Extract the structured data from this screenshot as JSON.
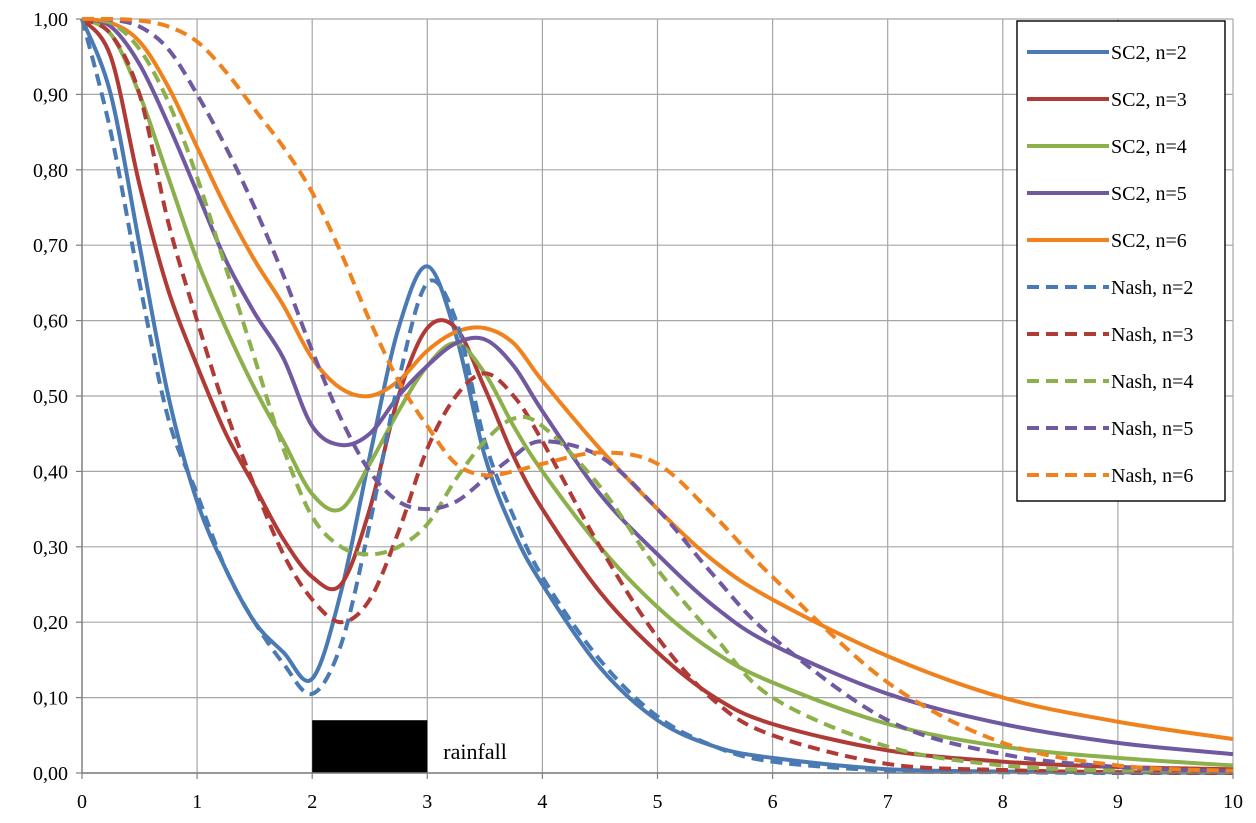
{
  "chart_data": {
    "type": "line",
    "title": "",
    "xlabel": "",
    "ylabel": "",
    "xlim": [
      0,
      10
    ],
    "ylim": [
      0,
      1
    ],
    "grid": true,
    "legend_position": "top-right",
    "x_ticks": [
      "0",
      "1",
      "2",
      "3",
      "4",
      "5",
      "6",
      "7",
      "8",
      "9",
      "10"
    ],
    "y_ticks": [
      "0,00",
      "0,10",
      "0,20",
      "0,30",
      "0,40",
      "0,50",
      "0,60",
      "0,70",
      "0,80",
      "0,90",
      "1,00"
    ],
    "annotation": {
      "text": "rainfall",
      "x0": 2,
      "x1": 3,
      "height": 0.07,
      "color": "#000000"
    },
    "series": [
      {
        "name": "SC2, n=2",
        "color": "#4a7ab3",
        "dash": "solid",
        "x": [
          0,
          0.25,
          0.5,
          0.75,
          1,
          1.25,
          1.5,
          1.75,
          2,
          2.25,
          2.5,
          2.75,
          3,
          3.25,
          3.5,
          3.75,
          4,
          4.5,
          5,
          5.5,
          6,
          7,
          8,
          9,
          10
        ],
        "y": [
          1,
          0.9,
          0.7,
          0.5,
          0.36,
          0.27,
          0.2,
          0.16,
          0.125,
          0.24,
          0.42,
          0.59,
          0.672,
          0.58,
          0.42,
          0.32,
          0.25,
          0.14,
          0.07,
          0.035,
          0.02,
          0.005,
          0.002,
          0.001,
          0
        ]
      },
      {
        "name": "SC2, n=3",
        "color": "#b03a36",
        "dash": "solid",
        "x": [
          0,
          0.25,
          0.5,
          0.75,
          1,
          1.25,
          1.5,
          1.75,
          2,
          2.25,
          2.5,
          2.75,
          3,
          3.25,
          3.5,
          3.75,
          4,
          4.5,
          5,
          5.5,
          6,
          7,
          8,
          9,
          10
        ],
        "y": [
          1,
          0.95,
          0.78,
          0.64,
          0.54,
          0.45,
          0.38,
          0.31,
          0.26,
          0.25,
          0.35,
          0.5,
          0.59,
          0.59,
          0.51,
          0.42,
          0.35,
          0.24,
          0.16,
          0.1,
          0.065,
          0.03,
          0.015,
          0.008,
          0.005
        ]
      },
      {
        "name": "SC2, n=4",
        "color": "#8cb04b",
        "dash": "solid",
        "x": [
          0,
          0.25,
          0.5,
          0.75,
          1,
          1.25,
          1.5,
          1.75,
          2,
          2.25,
          2.5,
          2.75,
          3,
          3.25,
          3.5,
          3.75,
          4,
          4.5,
          5,
          5.5,
          6,
          7,
          8,
          9,
          10
        ],
        "y": [
          1,
          0.98,
          0.9,
          0.79,
          0.68,
          0.59,
          0.51,
          0.44,
          0.37,
          0.35,
          0.41,
          0.48,
          0.54,
          0.57,
          0.53,
          0.46,
          0.4,
          0.3,
          0.22,
          0.16,
          0.12,
          0.065,
          0.035,
          0.02,
          0.01
        ]
      },
      {
        "name": "SC2, n=5",
        "color": "#7059a0",
        "dash": "solid",
        "x": [
          0,
          0.25,
          0.5,
          0.75,
          1,
          1.25,
          1.5,
          1.75,
          2,
          2.25,
          2.5,
          2.75,
          3,
          3.25,
          3.5,
          3.75,
          4,
          4.5,
          5,
          5.5,
          6,
          7,
          8,
          9,
          10
        ],
        "y": [
          1,
          0.99,
          0.94,
          0.86,
          0.77,
          0.68,
          0.61,
          0.55,
          0.46,
          0.435,
          0.45,
          0.5,
          0.54,
          0.57,
          0.575,
          0.54,
          0.48,
          0.37,
          0.29,
          0.22,
          0.17,
          0.105,
          0.065,
          0.04,
          0.025
        ]
      },
      {
        "name": "SC2, n=6",
        "color": "#f0821e",
        "dash": "solid",
        "x": [
          0,
          0.25,
          0.5,
          0.75,
          1,
          1.25,
          1.5,
          1.75,
          2,
          2.25,
          2.5,
          2.75,
          3,
          3.25,
          3.5,
          3.75,
          4,
          4.5,
          5,
          5.5,
          6,
          7,
          8,
          9,
          10
        ],
        "y": [
          1,
          0.995,
          0.97,
          0.91,
          0.83,
          0.75,
          0.68,
          0.62,
          0.55,
          0.51,
          0.5,
          0.52,
          0.56,
          0.585,
          0.59,
          0.57,
          0.52,
          0.43,
          0.35,
          0.28,
          0.23,
          0.155,
          0.1,
          0.068,
          0.045
        ]
      },
      {
        "name": "Nash, n=2",
        "color": "#4a7ab3",
        "dash": "dashed",
        "x": [
          0,
          0.25,
          0.5,
          0.75,
          1,
          1.25,
          1.5,
          1.75,
          2,
          2.25,
          2.5,
          2.75,
          3,
          3.25,
          3.5,
          3.75,
          4,
          4.5,
          5,
          5.5,
          6,
          7,
          8,
          9,
          10
        ],
        "y": [
          1,
          0.85,
          0.65,
          0.47,
          0.37,
          0.27,
          0.2,
          0.145,
          0.105,
          0.17,
          0.33,
          0.52,
          0.65,
          0.6,
          0.44,
          0.34,
          0.26,
          0.15,
          0.075,
          0.035,
          0.015,
          0.003,
          0.001,
          0,
          0
        ]
      },
      {
        "name": "Nash, n=3",
        "color": "#b03a36",
        "dash": "dashed",
        "x": [
          0,
          0.25,
          0.5,
          0.75,
          1,
          1.25,
          1.5,
          1.75,
          2,
          2.25,
          2.5,
          2.75,
          3,
          3.25,
          3.5,
          3.75,
          4,
          4.5,
          5,
          5.5,
          6,
          7,
          8,
          9,
          10
        ],
        "y": [
          1,
          0.98,
          0.9,
          0.73,
          0.6,
          0.48,
          0.38,
          0.29,
          0.23,
          0.2,
          0.23,
          0.32,
          0.43,
          0.5,
          0.53,
          0.5,
          0.44,
          0.3,
          0.18,
          0.095,
          0.05,
          0.012,
          0.004,
          0.001,
          0
        ]
      },
      {
        "name": "Nash, n=4",
        "color": "#8cb04b",
        "dash": "dashed",
        "x": [
          0,
          0.25,
          0.5,
          0.75,
          1,
          1.25,
          1.5,
          1.75,
          2,
          2.25,
          2.5,
          2.75,
          3,
          3.25,
          3.5,
          3.75,
          4,
          4.5,
          5,
          5.5,
          6,
          7,
          8,
          9,
          10
        ],
        "y": [
          1,
          0.995,
          0.96,
          0.89,
          0.79,
          0.67,
          0.55,
          0.43,
          0.34,
          0.3,
          0.29,
          0.3,
          0.33,
          0.39,
          0.44,
          0.47,
          0.46,
          0.38,
          0.27,
          0.18,
          0.1,
          0.035,
          0.01,
          0.003,
          0.001
        ]
      },
      {
        "name": "Nash, n=5",
        "color": "#7059a0",
        "dash": "dashed",
        "x": [
          0,
          0.25,
          0.5,
          0.75,
          1,
          1.25,
          1.5,
          1.75,
          2,
          2.25,
          2.5,
          2.75,
          3,
          3.25,
          3.5,
          3.75,
          4,
          4.5,
          5,
          5.5,
          6,
          7,
          8,
          9,
          10
        ],
        "y": [
          1,
          0.999,
          0.99,
          0.96,
          0.9,
          0.83,
          0.75,
          0.66,
          0.56,
          0.47,
          0.4,
          0.36,
          0.35,
          0.36,
          0.39,
          0.42,
          0.44,
          0.42,
          0.35,
          0.26,
          0.18,
          0.07,
          0.025,
          0.008,
          0.002
        ]
      },
      {
        "name": "Nash, n=6",
        "color": "#f0821e",
        "dash": "dashed",
        "x": [
          0,
          0.25,
          0.5,
          0.75,
          1,
          1.25,
          1.5,
          1.75,
          2,
          2.25,
          2.5,
          2.75,
          3,
          3.25,
          3.5,
          3.75,
          4,
          4.5,
          5,
          5.5,
          6,
          7,
          8,
          9,
          10
        ],
        "y": [
          1,
          1,
          0.998,
          0.99,
          0.97,
          0.93,
          0.88,
          0.83,
          0.77,
          0.69,
          0.6,
          0.52,
          0.46,
          0.41,
          0.395,
          0.4,
          0.41,
          0.425,
          0.41,
          0.34,
          0.26,
          0.12,
          0.04,
          0.01,
          0.003
        ]
      }
    ]
  }
}
